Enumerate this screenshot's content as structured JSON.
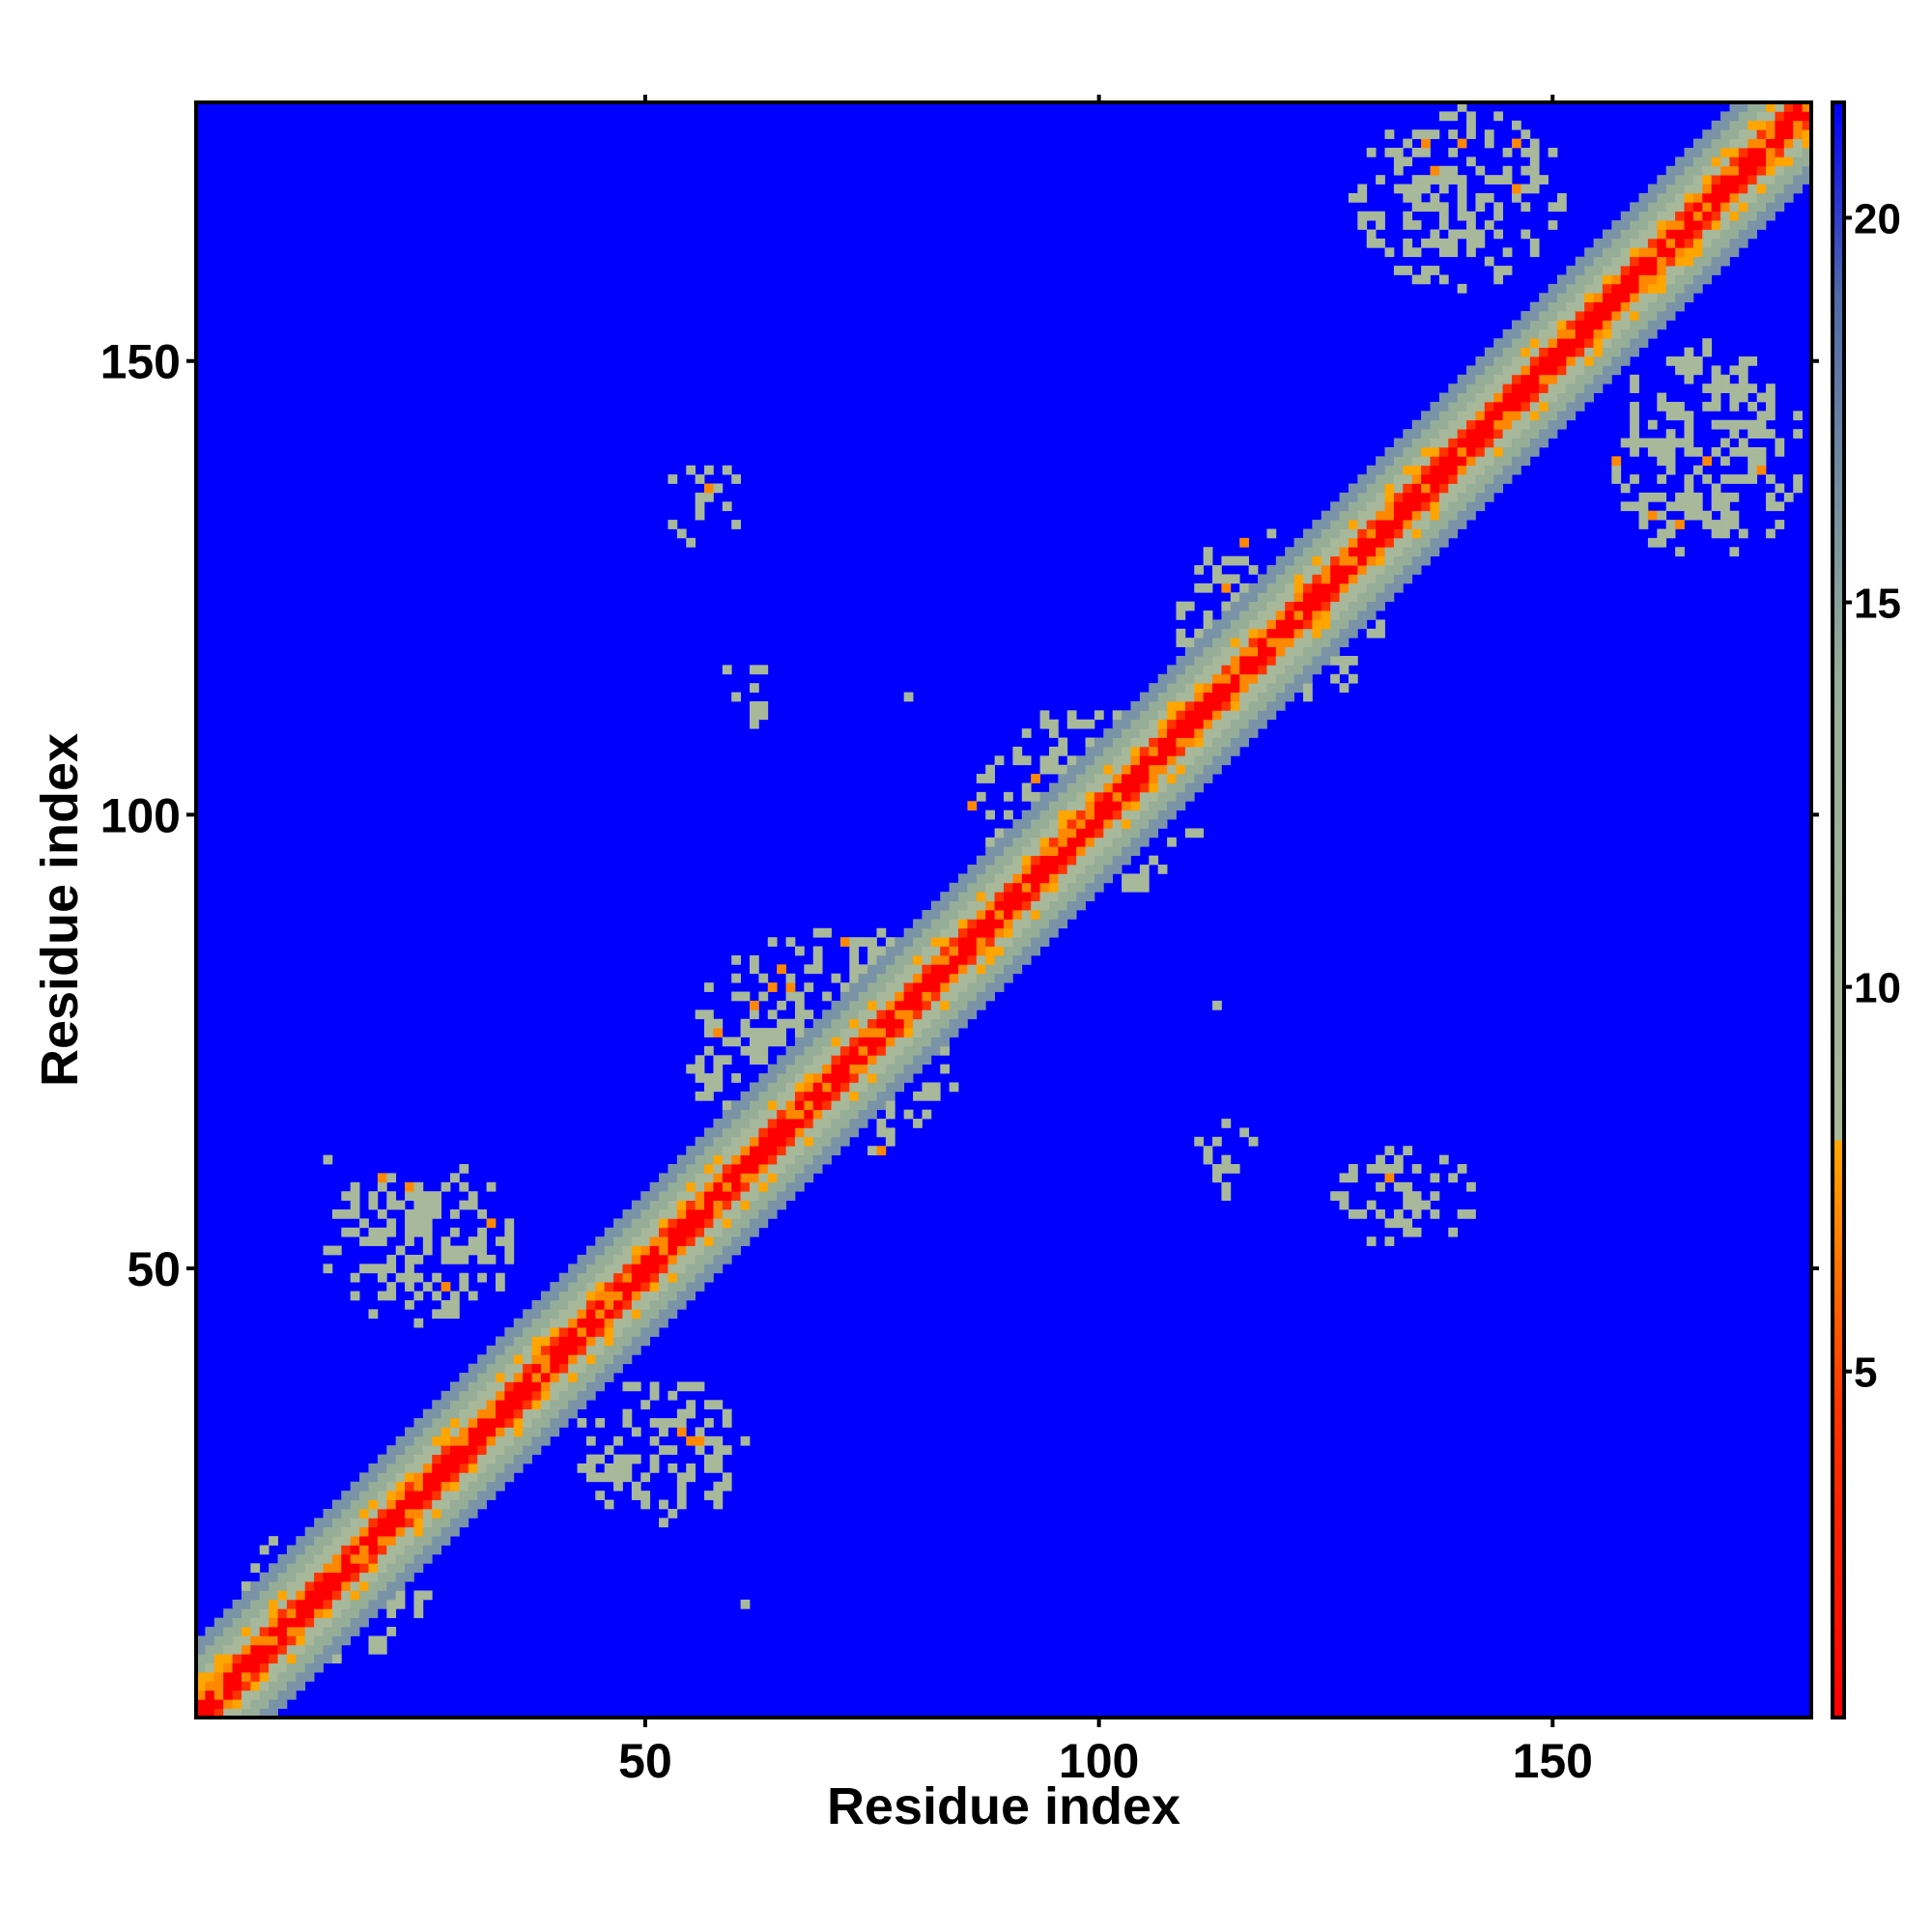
{
  "chart_data": {
    "type": "heatmap",
    "title": "",
    "xlabel": "Residue index",
    "ylabel": "Residue index",
    "xlim": [
      1,
      178
    ],
    "ylim": [
      1,
      178
    ],
    "x_ticks": [
      50,
      100,
      150
    ],
    "y_ticks": [
      50,
      100,
      150
    ],
    "colorbar": {
      "range": [
        0.5,
        21.5
      ],
      "ticks": [
        5,
        10,
        15,
        20
      ],
      "stops": [
        {
          "value": 0.5,
          "color": "#ff0000"
        },
        {
          "value": 4.5,
          "color": "#ff3300"
        },
        {
          "value": 7.0,
          "color": "#ff8800"
        },
        {
          "value": 8.0,
          "color": "#ffa500"
        },
        {
          "value": 8.01,
          "color": "#a8b89a"
        },
        {
          "value": 14.0,
          "color": "#96ad98"
        },
        {
          "value": 19.0,
          "color": "#4e6aa8"
        },
        {
          "value": 21.5,
          "color": "#0000ff"
        }
      ]
    },
    "grid": false,
    "diagonal_band": {
      "red_halfwidth": 1,
      "orange_halfwidth": 2,
      "tan_halfwidth": 4,
      "gray_halfwidth": 6,
      "light_halfwidth": 8
    },
    "contact_regions": [
      {
        "x": [
          4,
          26
        ],
        "y": [
          6,
          22
        ],
        "density": 0.45
      },
      {
        "x": [
          14,
          36
        ],
        "y": [
          44,
          62
        ],
        "density": 0.45
      },
      {
        "x": [
          42,
          62
        ],
        "y": [
          22,
          38
        ],
        "density": 0.45
      },
      {
        "x": [
          54,
          86
        ],
        "y": [
          62,
          88
        ],
        "density": 0.4
      },
      {
        "x": [
          86,
          112
        ],
        "y": [
          90,
          112
        ],
        "density": 0.4
      },
      {
        "x": [
          108,
          132
        ],
        "y": [
          112,
          132
        ],
        "density": 0.45
      },
      {
        "x": [
          128,
          152
        ],
        "y": [
          158,
          178
        ],
        "density": 0.45
      },
      {
        "x": [
          156,
          178
        ],
        "y": [
          128,
          152
        ],
        "density": 0.45
      },
      {
        "x": [
          52,
          62
        ],
        "y": [
          129,
          140
        ],
        "density": 0.3
      },
      {
        "x": [
          58,
          66
        ],
        "y": [
          110,
          118
        ],
        "density": 0.3
      },
      {
        "x": [
          110,
          118
        ],
        "y": [
          58,
          66
        ],
        "density": 0.3
      },
      {
        "x": [
          126,
          142
        ],
        "y": [
          52,
          64
        ],
        "density": 0.3
      }
    ],
    "isolated_cells": [
      [
        15,
        62
      ],
      [
        79,
        113
      ],
      [
        113,
        79
      ],
      [
        61,
        13
      ],
      [
        44,
        47
      ],
      [
        47,
        44
      ]
    ]
  }
}
